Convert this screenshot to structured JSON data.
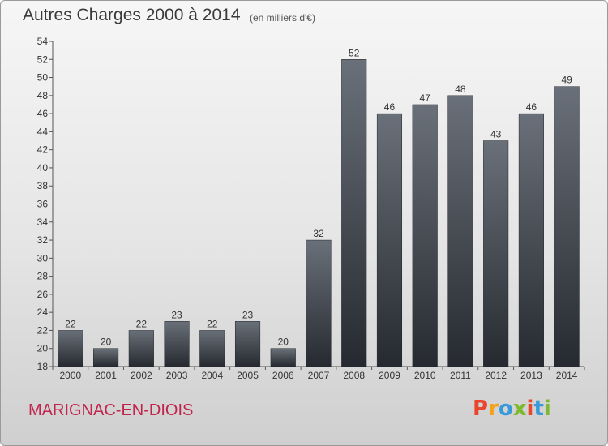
{
  "header": {
    "title": "Autres Charges 2000 à 2014",
    "subtitle": "(en milliers d'€)"
  },
  "footer": {
    "town": "MARIGNAC-EN-DIOIS",
    "town_color": "#c0254d",
    "logo_letters": [
      {
        "char": "P",
        "color": "#e8472e"
      },
      {
        "char": "r",
        "color": "#f3a21b"
      },
      {
        "char": "o",
        "color": "#3a9ad9"
      },
      {
        "char": "x",
        "color": "#7dba2f"
      },
      {
        "char": "i",
        "color": "#e8472e"
      },
      {
        "char": "t",
        "color": "#3a9ad9"
      },
      {
        "char": "i",
        "color": "#7dba2f"
      }
    ]
  },
  "chart_data": {
    "type": "bar",
    "title": "Autres Charges 2000 à 2014",
    "subtitle": "(en milliers d'€)",
    "categories": [
      "2000",
      "2001",
      "2002",
      "2003",
      "2004",
      "2005",
      "2006",
      "2007",
      "2008",
      "2009",
      "2010",
      "2011",
      "2012",
      "2013",
      "2014"
    ],
    "values": [
      22,
      20,
      22,
      23,
      22,
      23,
      20,
      32,
      52,
      46,
      47,
      48,
      43,
      46,
      49
    ],
    "ylim": [
      18,
      54
    ],
    "ytick_step": 2,
    "bar_color": "#3c4148",
    "grid": false
  }
}
